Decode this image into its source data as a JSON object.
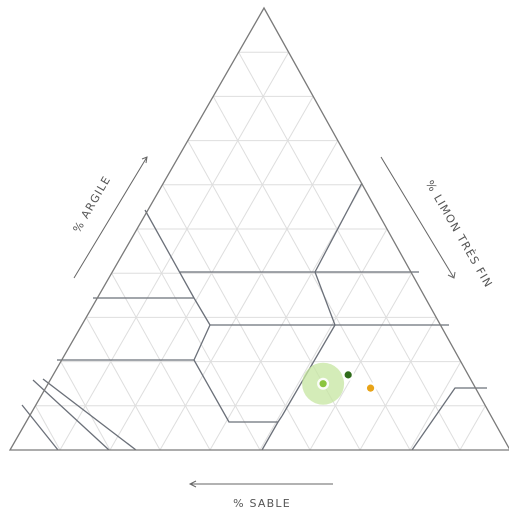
{
  "chart_data": {
    "type": "scatter",
    "chart_kind": "ternary soil texture triangle",
    "axes": {
      "clay": {
        "label": "% ARGILE",
        "range": [
          0,
          100
        ]
      },
      "silt": {
        "label": "% LIMON TRÈS FIN",
        "range": [
          0,
          100
        ]
      },
      "sand": {
        "label": "% SABLE",
        "range": [
          0,
          100
        ]
      }
    },
    "grid": true,
    "grid_step": 10,
    "points": [
      {
        "clay": 15,
        "silt": 55,
        "sand": 30,
        "color": "#8bc53f",
        "halo": true
      },
      {
        "clay": 17,
        "silt": 59,
        "sand": 24,
        "color": "#2f6b1a",
        "halo": false
      },
      {
        "clay": 14,
        "silt": 65,
        "sand": 21,
        "color": "#e8a317",
        "halo": false
      }
    ]
  },
  "colors": {
    "triangle": "#7a7a7a",
    "grid": "#dedede",
    "zones": "#6b7079",
    "label": "#555555",
    "halo": "#c5e6a0"
  }
}
